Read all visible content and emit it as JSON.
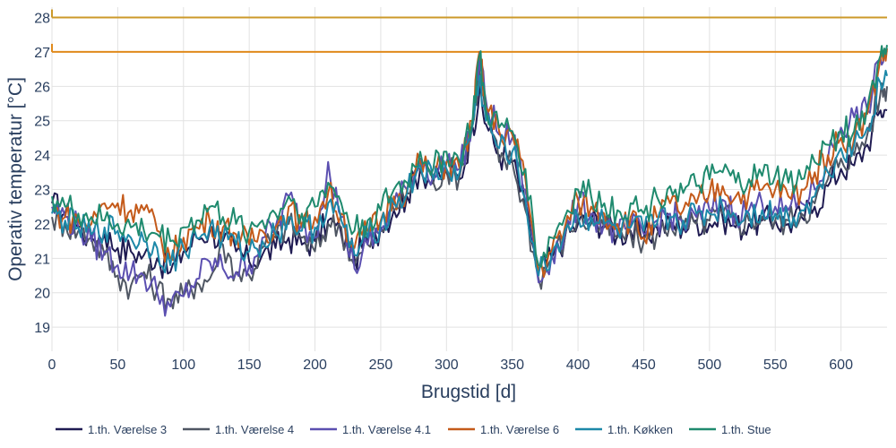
{
  "chart_data": {
    "type": "line",
    "xlabel": "Brugstid [d]",
    "ylabel": "Operativ temperatur [°C]",
    "xlim": [
      0,
      635
    ],
    "ylim": [
      18.3,
      28.3
    ],
    "x_ticks": [
      0,
      50,
      100,
      150,
      200,
      250,
      300,
      350,
      400,
      450,
      500,
      550,
      600
    ],
    "y_ticks": [
      19,
      20,
      21,
      22,
      23,
      24,
      25,
      26,
      27,
      28
    ],
    "grid": true,
    "legend_position": "bottom",
    "thresholds": [
      {
        "y": 28,
        "color": "#cc9a2a"
      },
      {
        "y": 27,
        "color": "#e08a1c"
      }
    ],
    "x": [
      0,
      10,
      20,
      30,
      40,
      50,
      60,
      70,
      80,
      90,
      100,
      110,
      120,
      130,
      140,
      150,
      160,
      170,
      180,
      190,
      200,
      210,
      220,
      230,
      240,
      250,
      260,
      270,
      280,
      290,
      300,
      310,
      320,
      325,
      330,
      340,
      350,
      360,
      370,
      380,
      390,
      400,
      410,
      420,
      430,
      440,
      450,
      460,
      470,
      480,
      490,
      500,
      510,
      520,
      530,
      540,
      550,
      560,
      570,
      580,
      590,
      600,
      610,
      620,
      630,
      635
    ],
    "series": [
      {
        "name": "1.th. Værelse 3",
        "color": "#1f1b52",
        "values": [
          22.6,
          22.3,
          21.9,
          21.6,
          21.7,
          21.3,
          21.2,
          21.1,
          21.0,
          20.6,
          21.2,
          21.6,
          21.8,
          21.5,
          21.2,
          20.9,
          21.1,
          21.3,
          21.6,
          21.4,
          21.5,
          22.1,
          21.7,
          21.0,
          21.5,
          21.9,
          22.4,
          22.8,
          23.6,
          23.2,
          23.5,
          23.3,
          24.8,
          25.8,
          24.9,
          24.0,
          23.8,
          22.5,
          20.6,
          21.0,
          21.6,
          22.0,
          22.1,
          22.0,
          21.7,
          21.8,
          21.6,
          21.9,
          22.0,
          21.9,
          22.1,
          22.0,
          22.2,
          21.9,
          22.0,
          22.1,
          22.1,
          22.0,
          22.2,
          22.5,
          23.1,
          23.6,
          23.7,
          24.3,
          25.3,
          25.3
        ]
      },
      {
        "name": "1.th. Værelse 4",
        "color": "#4f5663",
        "values": [
          22.2,
          22.0,
          21.8,
          21.6,
          21.1,
          20.5,
          20.2,
          20.6,
          20.1,
          19.8,
          19.9,
          20.3,
          20.4,
          21.4,
          20.6,
          20.5,
          21.3,
          21.6,
          22.0,
          21.6,
          21.2,
          22.0,
          21.9,
          20.8,
          21.4,
          21.8,
          22.4,
          22.9,
          23.6,
          23.2,
          23.6,
          23.4,
          24.9,
          26.5,
          25.2,
          23.8,
          23.8,
          22.4,
          20.4,
          21.0,
          21.6,
          22.2,
          22.0,
          21.9,
          21.6,
          21.7,
          21.5,
          21.7,
          22.0,
          21.9,
          22.0,
          22.1,
          22.3,
          22.0,
          22.1,
          22.2,
          22.1,
          22.1,
          22.3,
          22.6,
          23.3,
          23.9,
          24.0,
          24.6,
          25.8,
          26.0
        ]
      },
      {
        "name": "1.th. Værelse 4.1",
        "color": "#5b4fb0",
        "values": [
          22.5,
          22.2,
          21.9,
          21.5,
          21.2,
          20.8,
          20.6,
          20.5,
          20.0,
          19.6,
          19.9,
          20.4,
          20.9,
          20.7,
          20.6,
          20.8,
          21.6,
          21.9,
          22.8,
          22.0,
          21.6,
          23.8,
          22.2,
          20.7,
          21.4,
          21.8,
          22.6,
          23.0,
          23.9,
          23.4,
          23.8,
          23.6,
          25.0,
          26.8,
          25.6,
          24.6,
          24.5,
          23.0,
          20.3,
          21.1,
          21.7,
          22.6,
          22.3,
          22.0,
          21.7,
          21.9,
          21.7,
          22.1,
          22.3,
          22.0,
          22.2,
          22.4,
          22.7,
          22.3,
          22.4,
          22.6,
          22.5,
          22.4,
          22.6,
          23.0,
          23.9,
          24.8,
          25.1,
          25.3,
          26.8,
          27.0
        ]
      },
      {
        "name": "1.th. Værelse 6",
        "color": "#c45a1a",
        "values": [
          22.4,
          22.2,
          22.1,
          22.0,
          22.6,
          22.6,
          22.4,
          22.4,
          21.8,
          21.0,
          21.6,
          21.9,
          22.1,
          21.9,
          21.7,
          21.4,
          21.8,
          21.9,
          22.5,
          21.9,
          22.2,
          22.9,
          22.3,
          21.3,
          21.8,
          22.1,
          22.8,
          23.0,
          23.8,
          23.4,
          23.8,
          23.6,
          25.0,
          27.0,
          25.4,
          24.7,
          24.6,
          23.3,
          20.6,
          21.2,
          21.9,
          22.7,
          22.5,
          22.3,
          22.0,
          22.2,
          21.6,
          22.2,
          22.6,
          22.4,
          22.6,
          22.9,
          23.1,
          22.8,
          22.9,
          23.0,
          23.0,
          22.8,
          23.0,
          23.5,
          24.0,
          24.5,
          24.5,
          25.2,
          26.8,
          27.1
        ]
      },
      {
        "name": "1.th. Køkken",
        "color": "#1c88a8",
        "values": [
          22.3,
          22.1,
          21.9,
          21.7,
          21.9,
          21.8,
          21.6,
          21.5,
          21.3,
          20.8,
          21.3,
          21.6,
          21.9,
          21.6,
          21.4,
          21.2,
          21.5,
          21.7,
          22.2,
          21.8,
          21.9,
          22.6,
          22.1,
          21.1,
          21.6,
          22.0,
          22.6,
          22.9,
          23.7,
          23.3,
          23.6,
          23.5,
          24.9,
          26.3,
          25.0,
          24.2,
          24.1,
          22.7,
          20.5,
          21.1,
          21.8,
          22.2,
          22.2,
          22.0,
          21.8,
          21.9,
          21.8,
          22.0,
          22.2,
          22.1,
          22.3,
          22.3,
          22.5,
          22.2,
          22.3,
          22.4,
          22.3,
          22.2,
          22.4,
          22.8,
          23.5,
          24.2,
          24.3,
          24.8,
          26.1,
          26.3
        ]
      },
      {
        "name": "1.th. Stue",
        "color": "#1f8a6e",
        "values": [
          22.8,
          22.5,
          22.3,
          22.2,
          22.1,
          22.0,
          21.9,
          21.8,
          21.7,
          21.5,
          21.9,
          22.1,
          22.5,
          22.2,
          22.0,
          21.8,
          22.1,
          22.3,
          22.8,
          22.3,
          22.5,
          23.2,
          22.6,
          21.8,
          22.1,
          22.4,
          23.0,
          23.2,
          24.1,
          23.6,
          24.1,
          23.8,
          25.1,
          26.9,
          25.3,
          24.8,
          24.7,
          23.6,
          20.8,
          21.6,
          22.2,
          23.0,
          22.8,
          22.6,
          22.4,
          22.6,
          22.3,
          22.8,
          23.1,
          22.9,
          23.1,
          23.3,
          23.5,
          23.2,
          23.3,
          23.4,
          23.4,
          23.2,
          23.3,
          23.8,
          24.3,
          24.7,
          24.7,
          25.4,
          26.9,
          27.2
        ]
      }
    ]
  }
}
